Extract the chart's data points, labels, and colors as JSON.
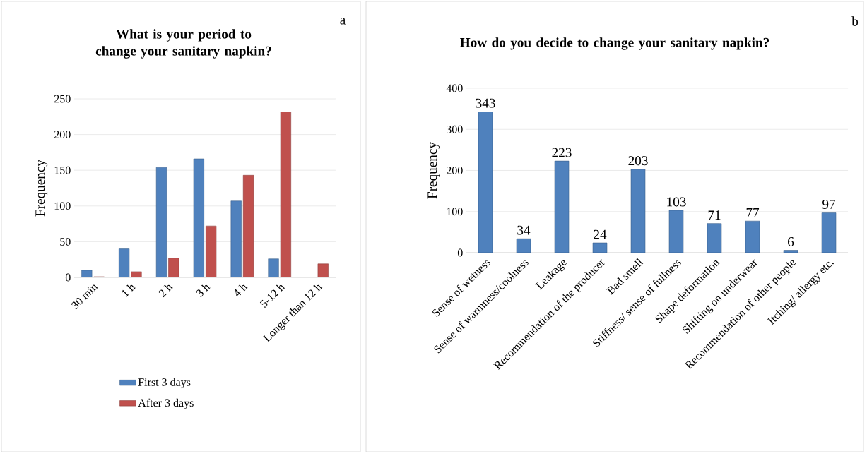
{
  "chart_data": [
    {
      "type": "bar",
      "title": "What is your period to change your sanitary napkin?",
      "ylabel": "Frequency",
      "categories": [
        "30 min",
        "1 h",
        "2 h",
        "3 h",
        "4 h",
        "5-12 h",
        "Longer than 12 h"
      ],
      "series": [
        {
          "name": "First 3 days",
          "color": "#4f81bd",
          "values": [
            10,
            40,
            154,
            166,
            107,
            26,
            0
          ]
        },
        {
          "name": "After 3 days",
          "color": "#c0504d",
          "values": [
            1,
            8,
            27,
            72,
            143,
            232,
            19
          ]
        }
      ],
      "ylim": [
        0,
        250
      ],
      "yticks": [
        0,
        50,
        100,
        150,
        200,
        250
      ],
      "grid": "y",
      "legend": "bottom",
      "annotations": [
        "a"
      ]
    },
    {
      "type": "bar",
      "title": "How do you decide to change your sanitary napkin?",
      "ylabel": "Frequency",
      "categories": [
        "Sense of wetness",
        "Sense of warmness/coolness",
        "Leakage",
        "Recommendation of the producer",
        "Bad smell",
        "Stiffness/ sense of fullness",
        "Shape deformation",
        "Shifting on underwear",
        "Recommendation of other people",
        "Itching/ allergy etc."
      ],
      "values": [
        343,
        34,
        223,
        24,
        203,
        103,
        71,
        77,
        6,
        97
      ],
      "color": "#4f81bd",
      "ylim": [
        0,
        400
      ],
      "yticks": [
        0,
        100,
        200,
        300,
        400
      ],
      "grid": "y",
      "data_labels": true,
      "annotations": [
        "b"
      ]
    }
  ]
}
